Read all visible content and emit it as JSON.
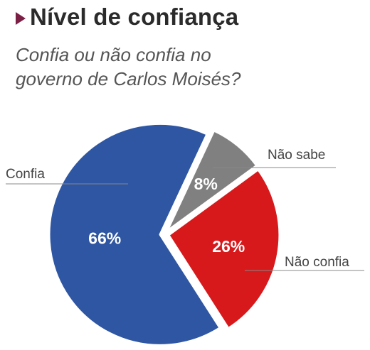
{
  "title": "Nível de confiança",
  "subtitle_lines": [
    "Confia ou não confia no",
    "governo de Carlos Moisés?"
  ],
  "colors": {
    "title_marker": "#7b1f45",
    "title_text": "#2b2b2b",
    "subtitle_text": "#555555",
    "leader_line": "#888888"
  },
  "chart_data": {
    "type": "pie",
    "title": "Nível de confiança",
    "subtitle": "Confia ou não confia no governo de Carlos Moisés?",
    "unit": "%",
    "slices": [
      {
        "label": "Não sabe",
        "value": 8,
        "value_label": "8%",
        "color": "#808080"
      },
      {
        "label": "Não confia",
        "value": 26,
        "value_label": "26%",
        "color": "#d7191c"
      },
      {
        "label": "Confia",
        "value": 66,
        "value_label": "66%",
        "color": "#2e56a2"
      }
    ]
  }
}
